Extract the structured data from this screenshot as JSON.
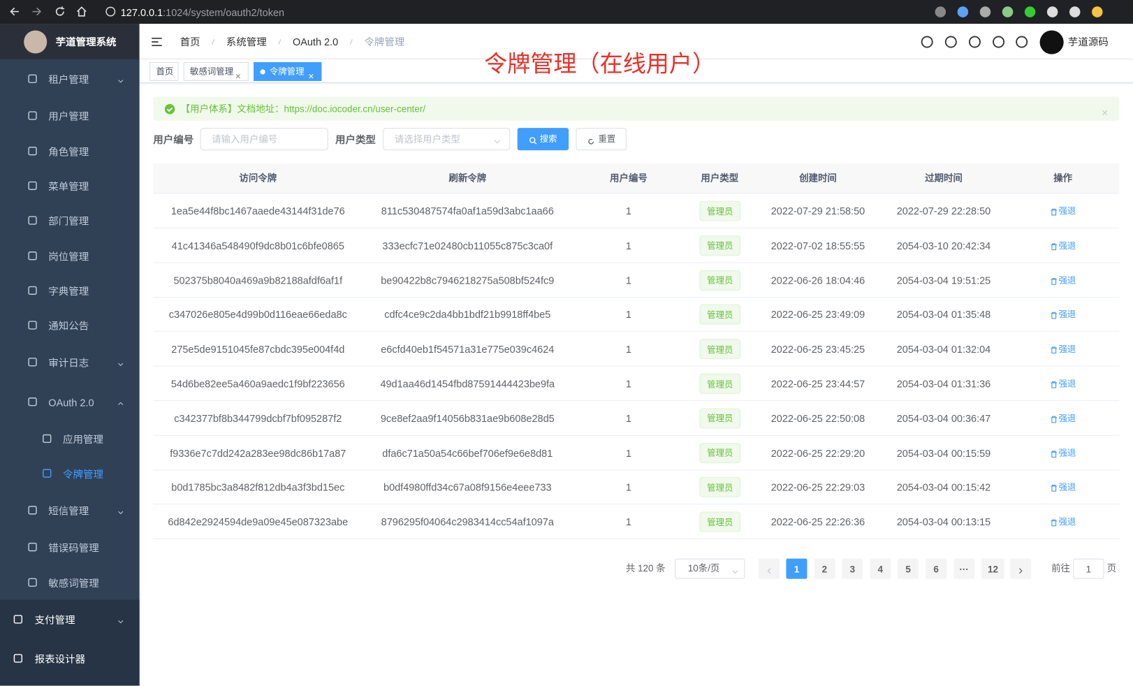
{
  "browser": {
    "url_host": "127.0.0.1",
    "url_path": ":1024/system/oauth2/token"
  },
  "sidebar": {
    "title": "芋道管理系统",
    "items": [
      {
        "label": "租户管理",
        "expandable": true
      },
      {
        "label": "用户管理"
      },
      {
        "label": "角色管理"
      },
      {
        "label": "菜单管理"
      },
      {
        "label": "部门管理"
      },
      {
        "label": "岗位管理"
      },
      {
        "label": "字典管理"
      },
      {
        "label": "通知公告"
      },
      {
        "label": "审计日志",
        "expandable": true
      },
      {
        "label": "OAuth 2.0",
        "expandable": true
      },
      {
        "label": "应用管理",
        "sub": true
      },
      {
        "label": "令牌管理",
        "sub": true,
        "active": true
      },
      {
        "label": "短信管理",
        "expandable": true
      },
      {
        "label": "错误码管理"
      },
      {
        "label": "敏感词管理"
      },
      {
        "label": "支付管理",
        "expandable": true,
        "top": true
      },
      {
        "label": "报表设计器",
        "top": true
      }
    ]
  },
  "header": {
    "breadcrumb": [
      "首页",
      "系统管理",
      "OAuth 2.0",
      "令牌管理"
    ],
    "user": "芋道源码"
  },
  "tabs": {
    "items": [
      "首页",
      "敏感词管理",
      "令牌管理"
    ],
    "active": 2
  },
  "annotation": "令牌管理（在线用户）",
  "alert": "【用户体系】文档地址：https://doc.iocoder.cn/user-center/",
  "form": {
    "fields": [
      {
        "label": "用户编号",
        "placeholder": "请输入用户编号"
      },
      {
        "label": "用户类型",
        "placeholder": "请选择用户类型"
      }
    ],
    "search": "搜索",
    "reset": "重置"
  },
  "table": {
    "columns": [
      "访问令牌",
      "刷新令牌",
      "用户编号",
      "用户类型",
      "创建时间",
      "过期时间",
      "操作"
    ],
    "rows": [
      [
        "1ea5e44f8bc1467aaede43144f31de76",
        "811c530487574fa0af1a59d3abc1aa66",
        "1",
        "管理员",
        "2022-07-29 21:58:50",
        "2022-07-29 22:28:50",
        "强退"
      ],
      [
        "41c41346a548490f9dc8b01c6bfe0865",
        "333ecfc71e02480cb11055c875c3ca0f",
        "1",
        "管理员",
        "2022-07-02 18:55:55",
        "2054-03-10 20:42:34",
        "强退"
      ],
      [
        "502375b8040a469a9b82188afdf6af1f",
        "be90422b8c7946218275a508bf524fc9",
        "1",
        "管理员",
        "2022-06-26 18:04:46",
        "2054-03-04 19:51:25",
        "强退"
      ],
      [
        "c347026e805e4d99b0d116eae66eda8c",
        "cdfc4ce9c2da4bb1bdf21b9918ff4be5",
        "1",
        "管理员",
        "2022-06-25 23:49:09",
        "2054-03-04 01:35:48",
        "强退"
      ],
      [
        "275e5de9151045fe87cbdc395e004f4d",
        "e6cfd40eb1f54571a31e775e039c4624",
        "1",
        "管理员",
        "2022-06-25 23:45:25",
        "2054-03-04 01:32:04",
        "强退"
      ],
      [
        "54d6be82ee5a460a9aedc1f9bf223656",
        "49d1aa46d1454fbd87591444423be9fa",
        "1",
        "管理员",
        "2022-06-25 23:44:57",
        "2054-03-04 01:31:36",
        "强退"
      ],
      [
        "c342377bf8b344799dcbf7bf095287f2",
        "9ce8ef2aa9f14056b831ae9b608e28d5",
        "1",
        "管理员",
        "2022-06-25 22:50:08",
        "2054-03-04 00:36:47",
        "强退"
      ],
      [
        "f9336e7c7dd242a283ee98dc86b17a87",
        "dfa6c71a50a54c66bef706ef9e6e8d81",
        "1",
        "管理员",
        "2022-06-25 22:29:20",
        "2054-03-04 00:15:59",
        "强退"
      ],
      [
        "b0d1785bc3a8482f812db4a3f3bd15ec",
        "b0df4980ffd34c67a08f9156e4eee733",
        "1",
        "管理员",
        "2022-06-25 22:29:03",
        "2054-03-04 00:15:42",
        "强退"
      ],
      [
        "6d842e2924594de9a09e45e087323abe",
        "8796295f04064c2983414cc54af1097a",
        "1",
        "管理员",
        "2022-06-25 22:26:36",
        "2054-03-04 00:13:15",
        "强退"
      ]
    ]
  },
  "pagination": {
    "total": "共 120 条",
    "size": "10条/页",
    "pages": [
      "1",
      "2",
      "3",
      "4",
      "5",
      "6",
      "···",
      "12"
    ],
    "active": 0,
    "goto": "前往",
    "goto_value": "1",
    "unit": "页"
  }
}
